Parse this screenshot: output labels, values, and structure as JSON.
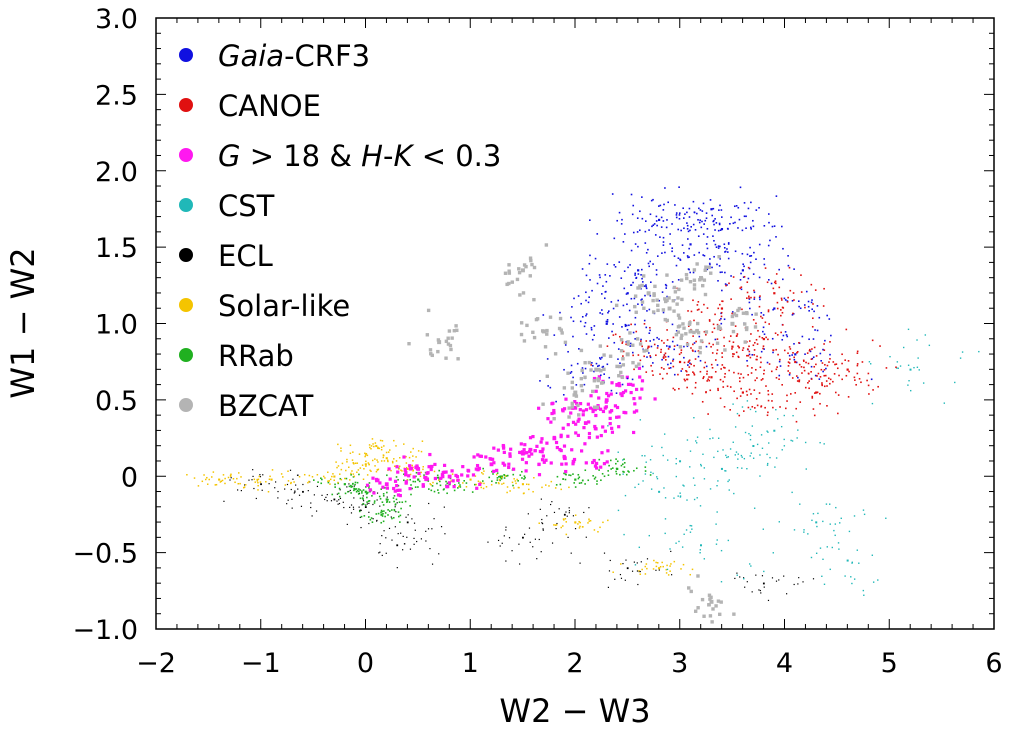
{
  "chart_data": {
    "type": "scatter",
    "xlabel": "W2 − W3",
    "ylabel": "W1 − W2",
    "xlim": [
      -2,
      6
    ],
    "ylim": [
      -1.0,
      3.0
    ],
    "x_ticks": [
      {
        "v": -2,
        "label": "−2"
      },
      {
        "v": -1,
        "label": "−1"
      },
      {
        "v": 0,
        "label": "0"
      },
      {
        "v": 1,
        "label": "1"
      },
      {
        "v": 2,
        "label": "2"
      },
      {
        "v": 3,
        "label": "3"
      },
      {
        "v": 4,
        "label": "4"
      },
      {
        "v": 5,
        "label": "5"
      },
      {
        "v": 6,
        "label": "6"
      }
    ],
    "y_ticks": [
      {
        "v": -1.0,
        "label": "−1.0"
      },
      {
        "v": -0.5,
        "label": "−0.5"
      },
      {
        "v": 0,
        "label": "0"
      },
      {
        "v": 0.5,
        "label": "0.5"
      },
      {
        "v": 1.0,
        "label": "1.0"
      },
      {
        "v": 1.5,
        "label": "1.5"
      },
      {
        "v": 2.0,
        "label": "2.0"
      },
      {
        "v": 2.5,
        "label": "2.5"
      },
      {
        "v": 3.0,
        "label": "3.0"
      }
    ],
    "grid": false,
    "legend_position": "top-left",
    "series": [
      {
        "name": "Gaia-CRF3",
        "color": "#1010e0",
        "points": [
          [
            3.1,
            1.52
          ],
          [
            2.6,
            1.35
          ],
          [
            3.6,
            1.35
          ],
          [
            2.8,
            1.68
          ],
          [
            3.4,
            1.62
          ],
          [
            2.3,
            1.0
          ],
          [
            2.9,
            0.85
          ],
          [
            3.9,
            1.1
          ],
          [
            2.2,
            0.7
          ],
          [
            4.1,
            0.8
          ],
          [
            3.3,
            1.75
          ],
          [
            2.5,
            1.2
          ]
        ]
      },
      {
        "name": "CANOE",
        "color": "#e01010",
        "points": [
          [
            3.3,
            0.65
          ],
          [
            3.5,
            0.85
          ],
          [
            3.8,
            0.9
          ],
          [
            3.0,
            0.75
          ],
          [
            3.6,
            0.55
          ],
          [
            4.1,
            0.75
          ],
          [
            2.7,
            0.85
          ],
          [
            3.9,
            1.2
          ],
          [
            3.4,
            1.1
          ],
          [
            4.3,
            0.55
          ],
          [
            4.6,
            0.7
          ]
        ]
      },
      {
        "name": "G > 18 & H-K < 0.3",
        "color": "#ff18f0",
        "points": [
          [
            1.8,
            0.25
          ],
          [
            2.1,
            0.35
          ],
          [
            2.3,
            0.5
          ],
          [
            1.2,
            0.08
          ],
          [
            0.8,
            0.0
          ],
          [
            1.5,
            0.15
          ],
          [
            0.2,
            -0.05
          ],
          [
            2.4,
            0.6
          ],
          [
            1.9,
            0.12
          ],
          [
            2.0,
            0.45
          ],
          [
            0.5,
            0.05
          ]
        ]
      },
      {
        "name": "CST",
        "color": "#20b8b8",
        "points": [
          [
            3.0,
            0.1
          ],
          [
            3.4,
            0.05
          ],
          [
            3.7,
            0.2
          ],
          [
            3.9,
            0.3
          ],
          [
            2.8,
            -0.1
          ],
          [
            4.3,
            -0.3
          ],
          [
            4.6,
            -0.55
          ],
          [
            3.2,
            -0.45
          ],
          [
            5.2,
            0.7
          ]
        ]
      },
      {
        "name": "ECL",
        "color": "#000000",
        "points": [
          [
            0.0,
            -0.2
          ],
          [
            -0.3,
            -0.15
          ],
          [
            0.4,
            -0.3
          ],
          [
            -0.6,
            -0.1
          ],
          [
            0.3,
            -0.45
          ],
          [
            1.5,
            -0.4
          ],
          [
            2.5,
            -0.6
          ],
          [
            -1.0,
            -0.05
          ],
          [
            1.9,
            -0.25
          ],
          [
            3.8,
            -0.7
          ]
        ]
      },
      {
        "name": "Solar-like",
        "color": "#f4c400",
        "points": [
          [
            0.0,
            0.08
          ],
          [
            0.2,
            0.12
          ],
          [
            -0.3,
            0.0
          ],
          [
            0.4,
            0.05
          ],
          [
            -0.9,
            -0.02
          ],
          [
            1.0,
            -0.02
          ],
          [
            1.5,
            -0.05
          ],
          [
            2.0,
            -0.3
          ],
          [
            2.8,
            -0.6
          ],
          [
            0.1,
            0.2
          ],
          [
            -1.4,
            -0.02
          ]
        ]
      },
      {
        "name": "RRab",
        "color": "#20b020",
        "points": [
          [
            0.0,
            -0.1
          ],
          [
            0.2,
            -0.15
          ],
          [
            -0.2,
            -0.05
          ],
          [
            0.5,
            -0.02
          ],
          [
            1.3,
            0.0
          ],
          [
            2.0,
            -0.02
          ],
          [
            2.4,
            0.05
          ],
          [
            0.15,
            -0.25
          ],
          [
            0.8,
            -0.05
          ]
        ]
      },
      {
        "name": "BZCAT",
        "color": "#b4b4b4",
        "points": [
          [
            2.9,
            1.1
          ],
          [
            3.1,
            0.95
          ],
          [
            2.7,
            1.2
          ],
          [
            3.2,
            1.3
          ],
          [
            2.5,
            0.8
          ],
          [
            2.2,
            0.7
          ],
          [
            1.7,
            0.95
          ],
          [
            1.5,
            1.35
          ],
          [
            0.7,
            0.88
          ],
          [
            3.5,
            1.0
          ],
          [
            2.0,
            0.55
          ],
          [
            3.3,
            -0.82
          ]
        ]
      }
    ]
  }
}
